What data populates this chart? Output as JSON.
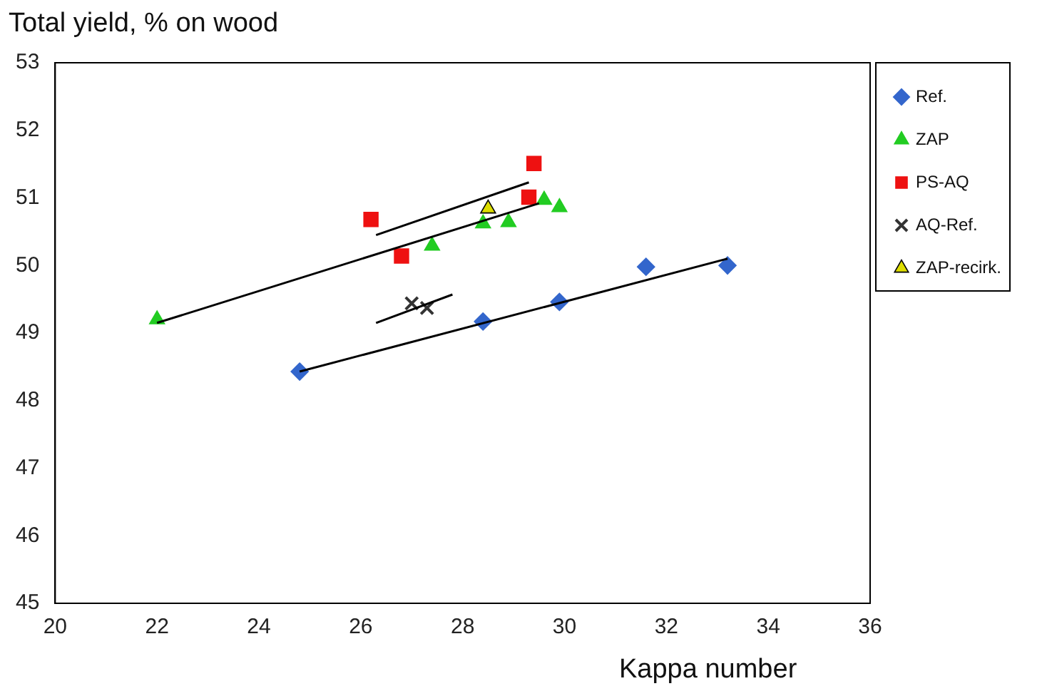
{
  "chart_data": {
    "type": "scatter",
    "xlabel": "Kappa number",
    "ylabel": "Total yield, % on wood",
    "xlim": [
      20,
      36
    ],
    "xticks": [
      20,
      22,
      24,
      26,
      28,
      30,
      32,
      34,
      36
    ],
    "ylim": [
      45,
      53
    ],
    "yticks": [
      45,
      46,
      47,
      48,
      49,
      50,
      51,
      52,
      53
    ],
    "grid": false,
    "legend": "right",
    "series": [
      {
        "name": "Ref.",
        "color": "#3366cc",
        "marker": "diamond",
        "x": [
          24.8,
          28.4,
          29.9,
          31.6,
          33.2
        ],
        "values": [
          48.43,
          49.17,
          49.46,
          49.98,
          50.0
        ]
      },
      {
        "name": "ZAP",
        "color": "#22cc22",
        "marker": "triangle",
        "x": [
          22.0,
          27.4,
          28.4,
          28.9,
          29.6,
          29.9
        ],
        "values": [
          49.2,
          50.29,
          50.62,
          50.64,
          50.97,
          50.86
        ]
      },
      {
        "name": "PS-AQ",
        "color": "#ee1111",
        "marker": "square",
        "x": [
          26.2,
          26.8,
          29.3,
          29.4
        ],
        "values": [
          50.68,
          50.14,
          51.01,
          51.51
        ]
      },
      {
        "name": "AQ-Ref.",
        "color": "#333333",
        "marker": "cross",
        "x": [
          27.0,
          27.3
        ],
        "values": [
          49.44,
          49.37
        ]
      },
      {
        "name": "ZAP-recirk.",
        "color": "#dddd00",
        "marker": "triangle",
        "x": [
          28.5
        ],
        "values": [
          50.84
        ]
      },
      {
        "type": "line",
        "color": "#000000",
        "marker": "none",
        "x": [
          24.8,
          33.2
        ],
        "values": [
          48.43,
          50.1
        ]
      },
      {
        "type": "line",
        "color": "#000000",
        "marker": "none",
        "x": [
          22.0,
          29.5
        ],
        "values": [
          49.15,
          50.92
        ]
      },
      {
        "type": "line",
        "color": "#000000",
        "marker": "none",
        "x": [
          26.3,
          29.3
        ],
        "values": [
          50.45,
          51.23
        ]
      },
      {
        "type": "line",
        "color": "#000000",
        "marker": "none",
        "x": [
          26.3,
          27.8
        ],
        "values": [
          49.15,
          49.57
        ]
      }
    ]
  }
}
